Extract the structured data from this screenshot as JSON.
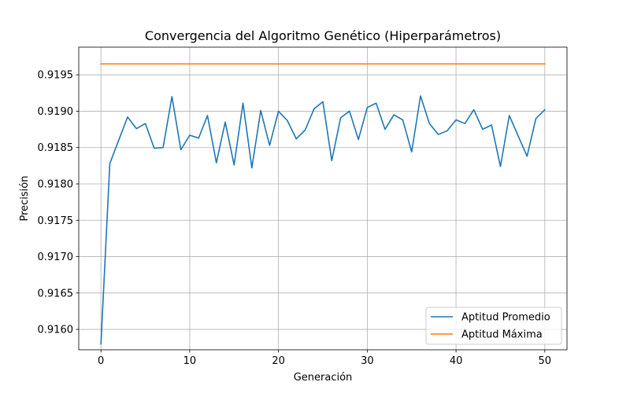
{
  "chart_data": {
    "type": "line",
    "title": "Convergencia del Algoritmo Genético (Hiperparámetros)",
    "xlabel": "Generación",
    "ylabel": "Precisión",
    "xlim": [
      -2.5,
      52.5
    ],
    "ylim": [
      0.91572,
      0.91988
    ],
    "xticks": [
      0,
      10,
      20,
      30,
      40,
      50
    ],
    "yticks": [
      0.916,
      0.9165,
      0.917,
      0.9175,
      0.918,
      0.9185,
      0.919,
      0.9195
    ],
    "grid": true,
    "legend_position": "lower-right",
    "x": [
      0,
      1,
      2,
      3,
      4,
      5,
      6,
      7,
      8,
      9,
      10,
      11,
      12,
      13,
      14,
      15,
      16,
      17,
      18,
      19,
      20,
      21,
      22,
      23,
      24,
      25,
      26,
      27,
      28,
      29,
      30,
      31,
      32,
      33,
      34,
      35,
      36,
      37,
      38,
      39,
      40,
      41,
      42,
      43,
      44,
      45,
      46,
      47,
      48,
      49,
      50
    ],
    "series": [
      {
        "name": "Aptitud Promedio",
        "color": "#1f77b4",
        "values": [
          0.9158,
          0.91828,
          0.9186,
          0.91892,
          0.91876,
          0.91883,
          0.91849,
          0.9185,
          0.9192,
          0.91847,
          0.91867,
          0.91863,
          0.91894,
          0.91829,
          0.91885,
          0.91826,
          0.91911,
          0.91822,
          0.91901,
          0.91853,
          0.919,
          0.91887,
          0.91862,
          0.91874,
          0.91903,
          0.91913,
          0.91832,
          0.91891,
          0.919,
          0.91861,
          0.91905,
          0.91911,
          0.91875,
          0.91895,
          0.91888,
          0.91844,
          0.91921,
          0.91883,
          0.91868,
          0.91873,
          0.91888,
          0.91883,
          0.91902,
          0.91875,
          0.91881,
          0.91824,
          0.91894,
          0.91866,
          0.91838,
          0.9189,
          0.91902
        ]
      },
      {
        "name": "Aptitud Máxima",
        "color": "#ff7f0e",
        "values": [
          0.91965,
          0.91965,
          0.91965,
          0.91965,
          0.91965,
          0.91965,
          0.91965,
          0.91965,
          0.91965,
          0.91965,
          0.91965,
          0.91965,
          0.91965,
          0.91965,
          0.91965,
          0.91965,
          0.91965,
          0.91965,
          0.91965,
          0.91965,
          0.91965,
          0.91965,
          0.91965,
          0.91965,
          0.91965,
          0.91965,
          0.91965,
          0.91965,
          0.91965,
          0.91965,
          0.91965,
          0.91965,
          0.91965,
          0.91965,
          0.91965,
          0.91965,
          0.91965,
          0.91965,
          0.91965,
          0.91965,
          0.91965,
          0.91965,
          0.91965,
          0.91965,
          0.91965,
          0.91965,
          0.91965,
          0.91965,
          0.91965,
          0.91965,
          0.91965
        ]
      }
    ]
  }
}
